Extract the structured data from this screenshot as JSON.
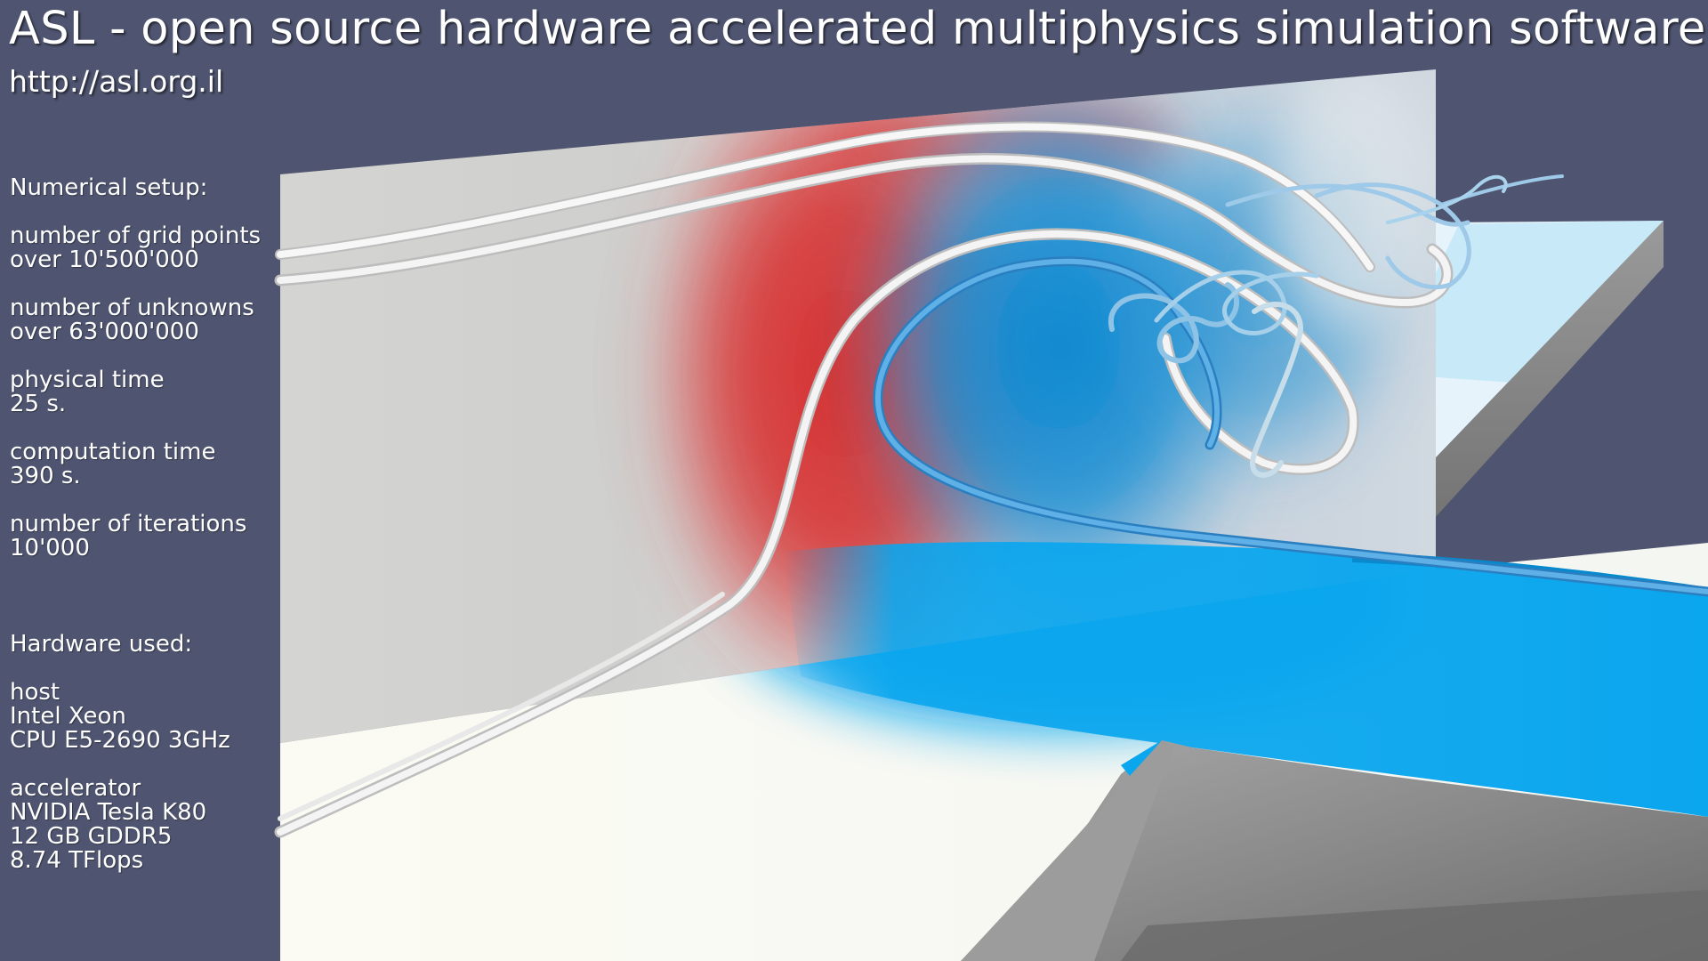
{
  "header": {
    "title": "ASL - open source hardware accelerated multiphysics simulation software",
    "url": "http://asl.org.il"
  },
  "numerical_setup": {
    "heading": "Numerical setup:",
    "entries": [
      {
        "label": "number of grid points",
        "value": "over 10'500'000"
      },
      {
        "label": "number of unknowns",
        "value": "over 63'000'000"
      },
      {
        "label": "physical time",
        "value": "25 s."
      },
      {
        "label": "computation time",
        "value": "390 s."
      },
      {
        "label": "number of iterations",
        "value": "10'000"
      }
    ]
  },
  "hardware": {
    "heading": "Hardware used:",
    "host": {
      "label": "host",
      "lines": [
        "Intel Xeon",
        "CPU E5-2690 3GHz"
      ]
    },
    "accelerator": {
      "label": "accelerator",
      "lines": [
        "NVIDIA Tesla K80",
        "12 GB GDDR5",
        "8.74 TFlops"
      ]
    }
  },
  "colors": {
    "background": "#4f5570",
    "hot": "#d83a3a",
    "cold": "#0aa6ee",
    "floor": "#fbfbf3",
    "wall": "#d6d6d4",
    "streamline": "#f2f2f2"
  },
  "scene": {
    "description_icon": "cfd-simulation-render"
  }
}
